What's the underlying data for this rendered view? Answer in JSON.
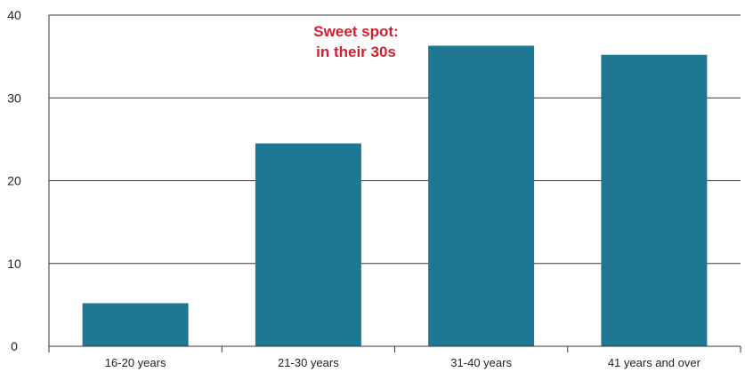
{
  "chart_data": {
    "type": "bar",
    "categories": [
      "16-20 years",
      "21-30 years",
      "31-40 years",
      "41 years and over"
    ],
    "values": [
      5.2,
      24.5,
      36.3,
      35.2
    ],
    "ylim": [
      0,
      40
    ],
    "yticks": [
      0,
      10,
      20,
      30,
      40
    ],
    "grid": true,
    "bar_color": "#1f7893",
    "annotation": {
      "lines": [
        "Sweet spot:",
        "in their 30s"
      ],
      "color": "#d0202e"
    }
  }
}
